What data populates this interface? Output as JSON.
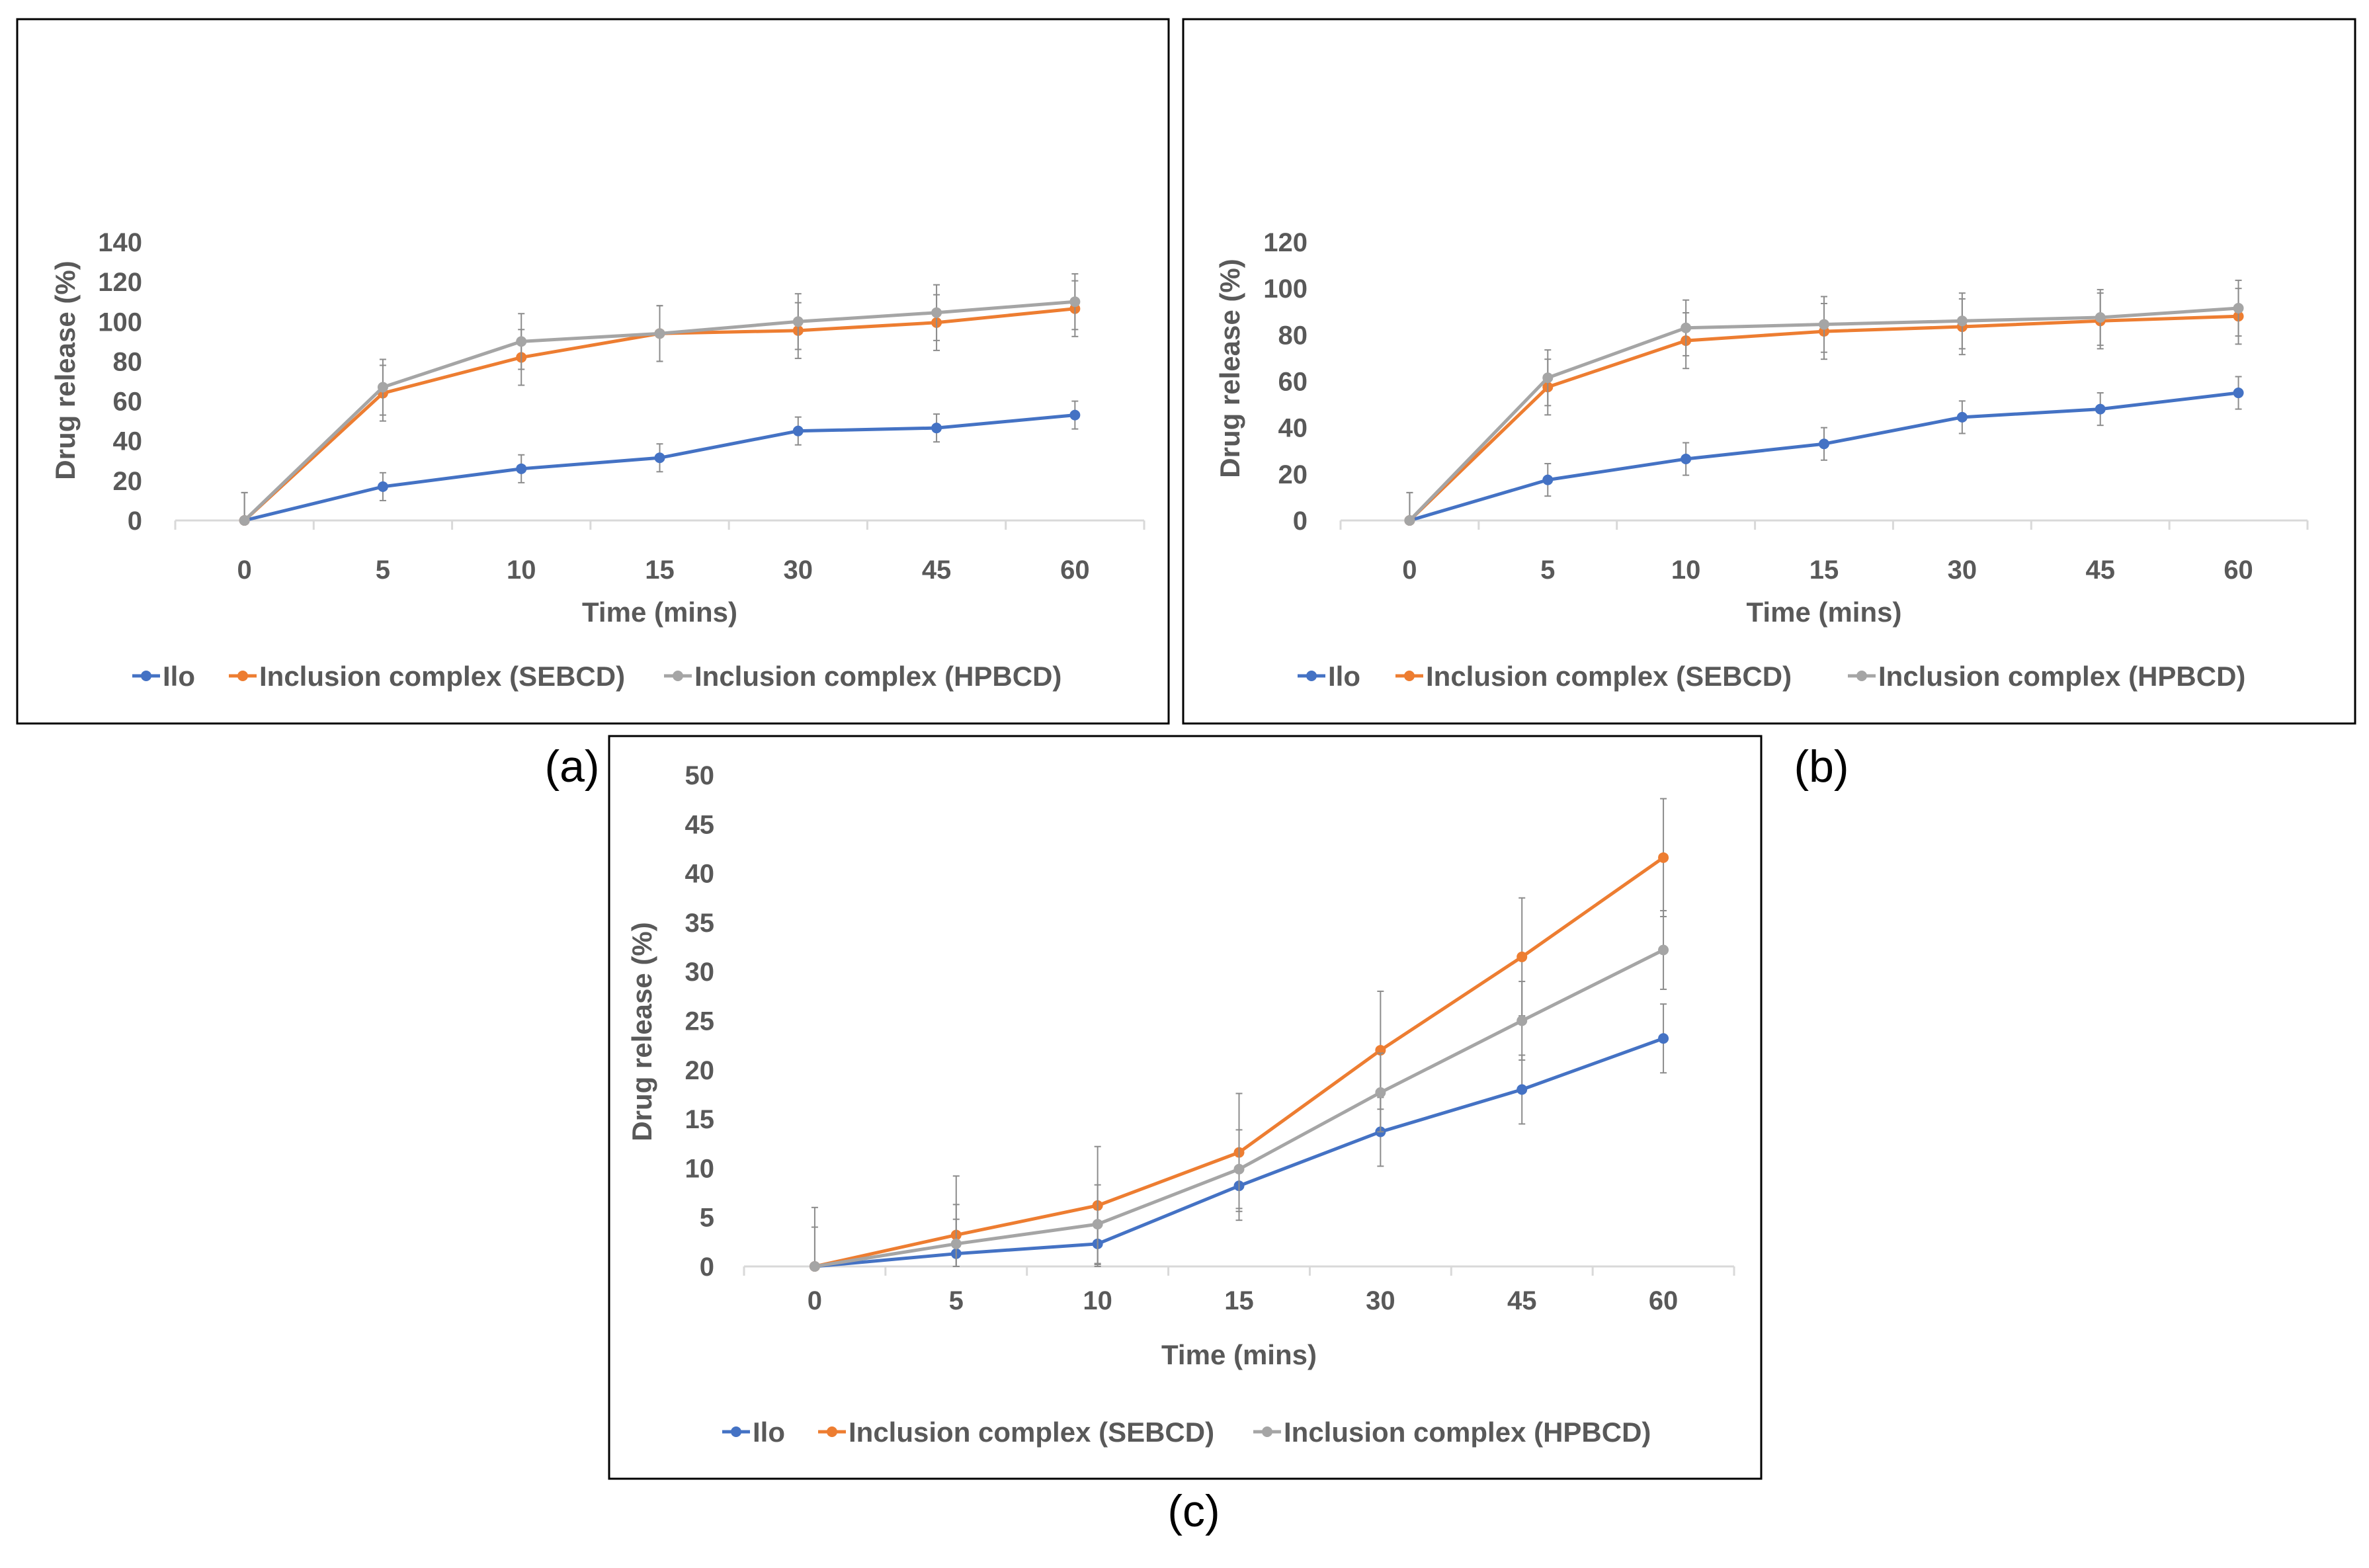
{
  "chart_data": [
    {
      "panel_label": "(a)",
      "type": "line",
      "categories": [
        "0",
        "5",
        "10",
        "15",
        "30",
        "45",
        "60"
      ],
      "xlabel": "Time (mins)",
      "ylabel": "Drug release (%)",
      "ylim": [
        0,
        140
      ],
      "yticks": [
        "0",
        "20",
        "40",
        "60",
        "80",
        "100",
        "120",
        "140"
      ],
      "grid": false,
      "legend_position": "bottom",
      "series": [
        {
          "name": "Ilo",
          "color": "#4472C4",
          "values": [
            0,
            17,
            26,
            31.5,
            45,
            46.5,
            53
          ],
          "errors": [
            0,
            7,
            7,
            7,
            7,
            7,
            7
          ]
        },
        {
          "name": "Inclusion complex (SEBCD)",
          "color": "#ED7D31",
          "values": [
            0,
            64,
            82,
            94,
            95.5,
            99.5,
            106.5
          ],
          "errors": [
            14,
            14,
            14,
            14,
            14,
            14,
            14
          ]
        },
        {
          "name": "Inclusion complex (HPBCD)",
          "color": "#A5A5A5",
          "values": [
            0,
            67,
            90,
            94,
            100,
            104.5,
            110
          ],
          "errors": [
            14,
            14,
            14,
            14,
            14,
            14,
            14
          ]
        }
      ]
    },
    {
      "panel_label": "(b)",
      "type": "line",
      "categories": [
        "0",
        "5",
        "10",
        "15",
        "30",
        "45",
        "60"
      ],
      "xlabel": "Time (mins)",
      "ylabel": "Drug release (%)",
      "ylim": [
        0,
        120
      ],
      "yticks": [
        "0",
        "20",
        "40",
        "60",
        "80",
        "100",
        "120"
      ],
      "grid": false,
      "legend_position": "bottom",
      "series": [
        {
          "name": "Ilo",
          "color": "#4472C4",
          "values": [
            0,
            17.5,
            26.5,
            33,
            44.5,
            48,
            55
          ],
          "errors": [
            0,
            7,
            7,
            7,
            7,
            7,
            7
          ]
        },
        {
          "name": "Inclusion complex (SEBCD)",
          "color": "#ED7D31",
          "values": [
            0,
            57.5,
            77.5,
            81.5,
            83.5,
            86,
            88
          ],
          "errors": [
            12,
            12,
            12,
            12,
            12,
            12,
            12
          ]
        },
        {
          "name": "Inclusion complex (HPBCD)",
          "color": "#A5A5A5",
          "values": [
            0,
            61.5,
            83,
            84.5,
            86,
            87.5,
            91.5
          ],
          "errors": [
            12,
            12,
            12,
            12,
            12,
            12,
            12
          ]
        }
      ]
    },
    {
      "panel_label": "(c)",
      "type": "line",
      "categories": [
        "0",
        "5",
        "10",
        "15",
        "30",
        "45",
        "60"
      ],
      "xlabel": "Time (mins)",
      "ylabel": "Drug release (%)",
      "ylim": [
        0,
        50
      ],
      "yticks": [
        "0",
        "5",
        "10",
        "15",
        "20",
        "25",
        "30",
        "35",
        "40",
        "45",
        "50"
      ],
      "grid": false,
      "legend_position": "bottom",
      "series": [
        {
          "name": "Ilo",
          "color": "#4472C4",
          "values": [
            0,
            1.3,
            2.3,
            8.2,
            13.7,
            18,
            23.2
          ],
          "errors": [
            0,
            3.5,
            3.5,
            3.5,
            3.5,
            3.5,
            3.5
          ]
        },
        {
          "name": "Inclusion complex (SEBCD)",
          "color": "#ED7D31",
          "values": [
            0,
            3.2,
            6.2,
            11.6,
            22,
            31.5,
            41.6
          ],
          "errors": [
            6,
            6,
            6,
            6,
            6,
            6,
            6
          ]
        },
        {
          "name": "Inclusion complex (HPBCD)",
          "color": "#A5A5A5",
          "values": [
            0,
            2.3,
            4.3,
            9.9,
            17.7,
            25,
            32.2
          ],
          "errors": [
            4,
            4,
            4,
            4,
            4,
            4,
            4
          ]
        }
      ]
    }
  ]
}
